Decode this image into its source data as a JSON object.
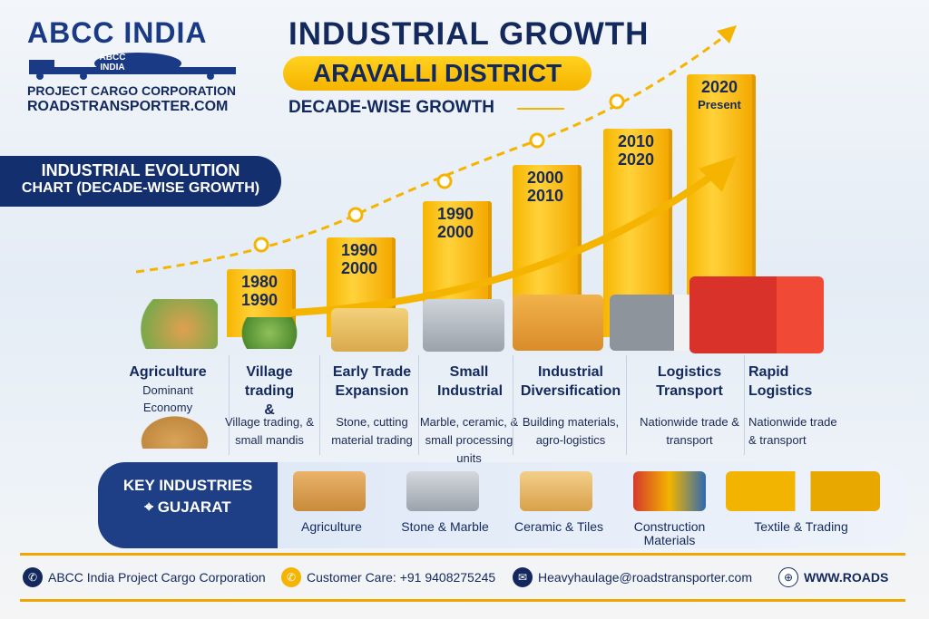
{
  "logo": {
    "title": "ABCC INDIA",
    "badge": "ABCC INDIA",
    "line1": "PROJECT CARGO CORPORATION",
    "line2": "ROADSTRANSPORTER.COM"
  },
  "header": {
    "title": "INDUSTRIAL GROWTH",
    "district": "ARAVALLI DISTRICT",
    "subtitle": "DECADE-WISE GROWTH"
  },
  "banner": {
    "line1": "INDUSTRIAL EVOLUTION",
    "line2": "CHART (DECADE-WISE GROWTH)"
  },
  "bars": [
    {
      "from": "1980",
      "to": "1990"
    },
    {
      "from": "1990",
      "to": "2000"
    },
    {
      "from": "1990",
      "to": "2000"
    },
    {
      "from": "2000",
      "to": "2010"
    },
    {
      "from": "2010",
      "to": "2020"
    },
    {
      "from": "2020",
      "to": "Present"
    }
  ],
  "stages": [
    {
      "heading": "Agriculture",
      "sub": "Dominant Economy",
      "desc": ""
    },
    {
      "heading": "Village trading &",
      "sub": "",
      "desc": "Village trading, & small mandis"
    },
    {
      "heading": "Early Trade Expansion",
      "sub": "",
      "desc": "Stone, cutting material trading"
    },
    {
      "heading": "Small Industrial",
      "sub": "",
      "desc": "Marble, ceramic, & small processing units"
    },
    {
      "heading": "Industrial Diversification",
      "sub": "",
      "desc": "Building materials, agro-logistics"
    },
    {
      "heading": "Logistics Transport",
      "sub": "",
      "desc": "Nationwide trade & transport"
    },
    {
      "heading": "Rapid Logistics",
      "sub": "",
      "desc": "Nationwide trade & transport"
    }
  ],
  "key_industries": {
    "title": "KEY INDUSTRIES",
    "location": "GUJARAT",
    "items": [
      "Agriculture",
      "Stone & Marble",
      "Ceramic & Tiles",
      "Construction Materials",
      "Textile & Trading"
    ]
  },
  "footer": {
    "company": "ABCC India Project Cargo Corporation",
    "phone": "Customer Care: +91 9408275245",
    "email": "Heavyhaulage@roadstransporter.com",
    "website": "WWW.ROADS"
  },
  "colors": {
    "navy": "#13295e",
    "gold": "#f5b400",
    "truck_red": "#e53a2a"
  }
}
